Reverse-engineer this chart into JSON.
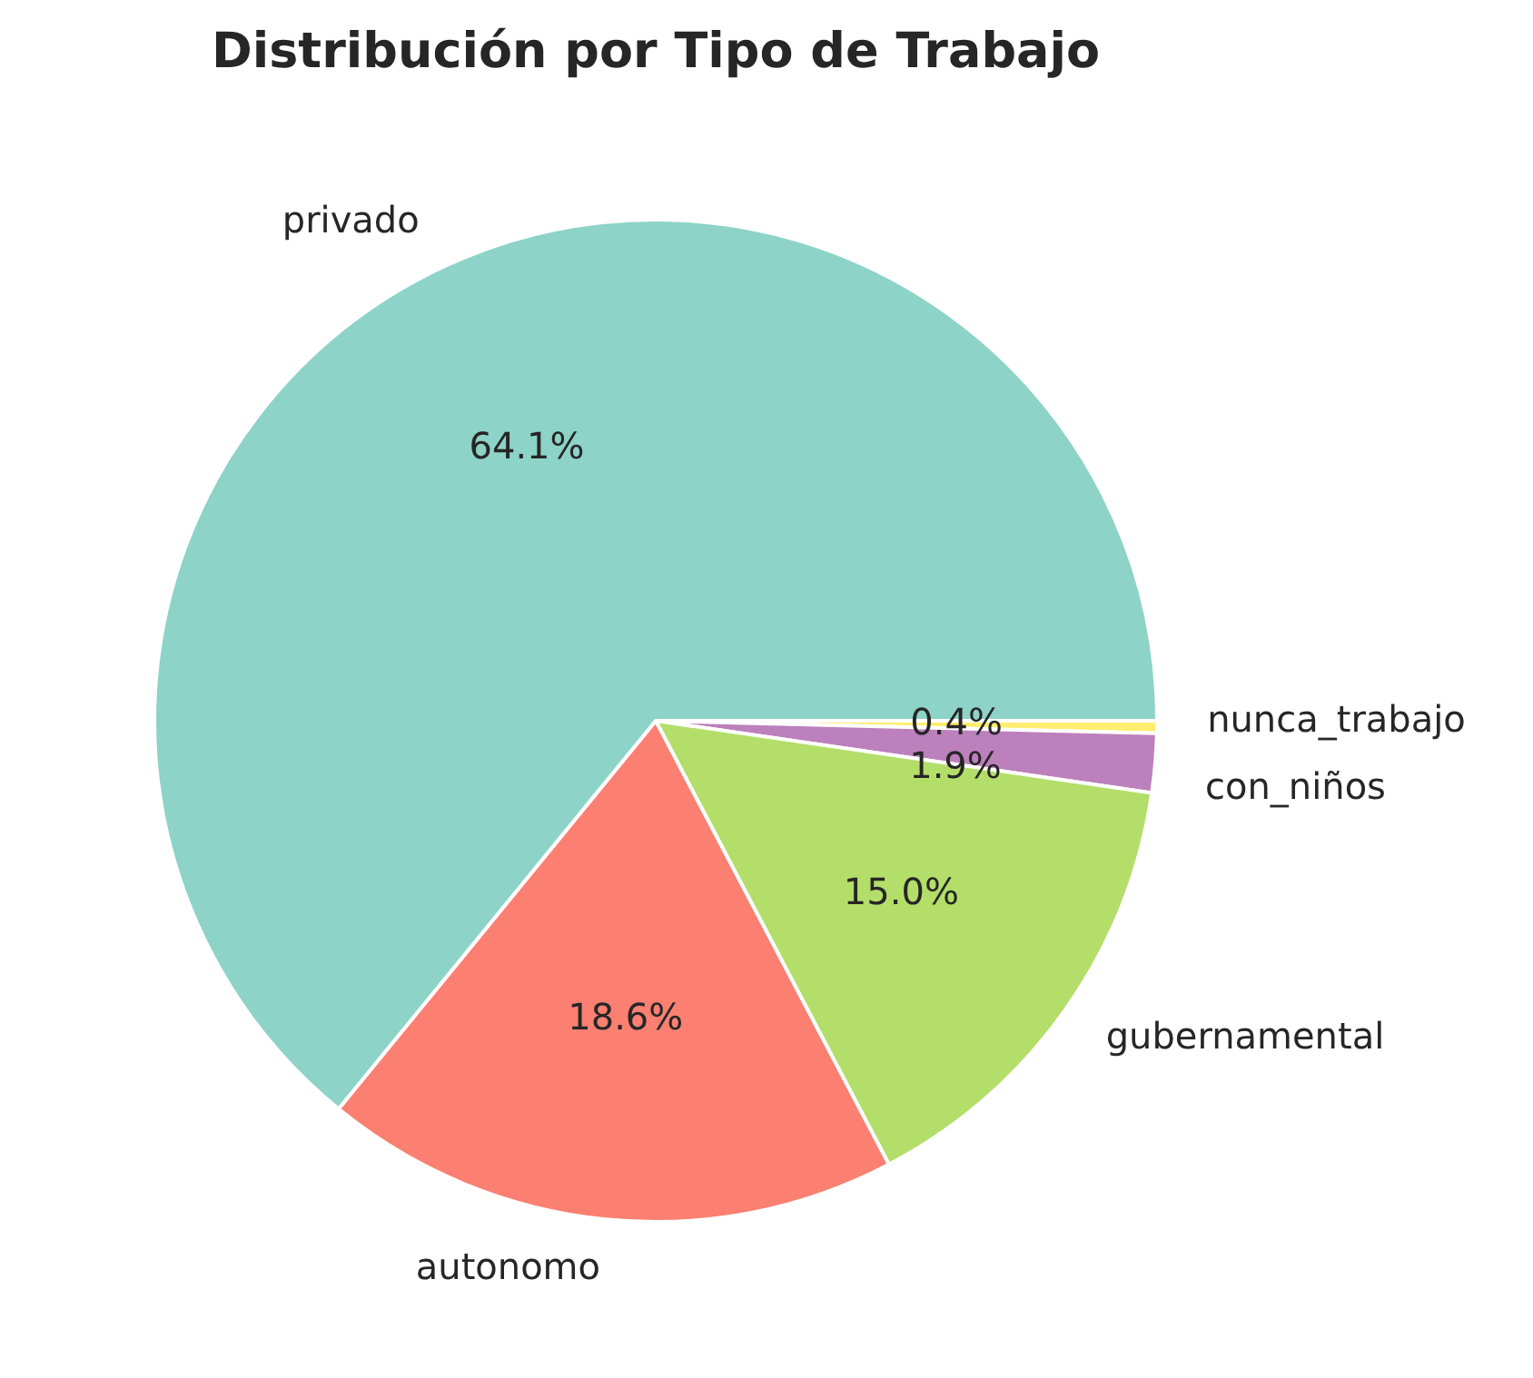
{
  "chart_data": {
    "type": "pie",
    "title": "Distribución por Tipo de Trabajo",
    "categories": [
      "privado",
      "autonomo",
      "gubernamental",
      "con_niños",
      "nunca_trabajo"
    ],
    "values": [
      64.1,
      18.6,
      15.0,
      1.9,
      0.4
    ],
    "value_labels": [
      "64.1%",
      "18.6%",
      "15.0%",
      "1.9%",
      "0.4%"
    ],
    "colors": [
      "#8dd3c7",
      "#fb8072",
      "#b3de69",
      "#bc80bd",
      "#ffed6f"
    ],
    "legend": false
  }
}
